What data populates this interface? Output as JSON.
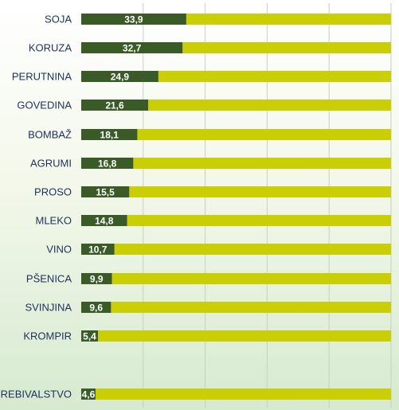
{
  "chart_data": {
    "type": "bar",
    "orientation": "horizontal",
    "stacked_full": true,
    "categories": [
      "SOJA",
      "KORUZA",
      "PERUTNINA",
      "GOVEDINA",
      "BOMBAŽ",
      "AGRUMI",
      "PROSO",
      "MLEKO",
      "VINO",
      "PŠENICA",
      "SVINJINA",
      "KROMPIR",
      "PREBIVALSTVO"
    ],
    "values": [
      33.9,
      32.7,
      24.9,
      21.6,
      18.1,
      16.8,
      15.5,
      14.8,
      10.7,
      9.9,
      9.6,
      5.4,
      4.6
    ],
    "value_labels": [
      "33,9",
      "32,7",
      "24,9",
      "21,6",
      "18,1",
      "16,8",
      "15,5",
      "14,8",
      "10,7",
      "9,9",
      "9,6",
      "5,4",
      "4,6"
    ],
    "xlim": [
      0,
      100
    ],
    "grid": true,
    "legend": "none",
    "colors": {
      "value_bar": "#3a5a27",
      "remainder_bar": "#c9cf04",
      "gridline": "#c8d0c0",
      "category_text": "#1f2f5a",
      "value_text": "#ffffff"
    }
  }
}
